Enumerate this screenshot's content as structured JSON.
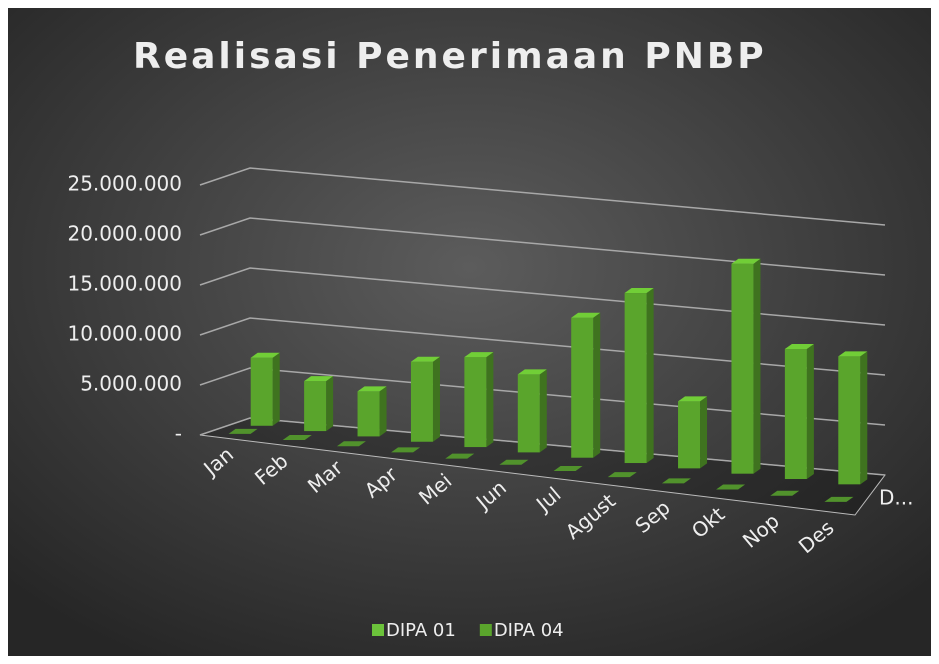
{
  "chart_data": {
    "type": "bar3d",
    "title": "Realisasi Penerimaan PNBP",
    "categories": [
      "Jan",
      "Feb",
      "Mar",
      "Apr",
      "Mei",
      "Jun",
      "Jul",
      "Agust",
      "Sep",
      "Okt",
      "Nop",
      "Des"
    ],
    "series": [
      {
        "name": "DIPA 01",
        "color": "#6cc33b",
        "values": [
          0,
          0,
          0,
          0,
          0,
          0,
          0,
          0,
          0,
          0,
          0,
          0
        ]
      },
      {
        "name": "DIPA 04",
        "color": "#5aa52c",
        "values": [
          6800000,
          5000000,
          4500000,
          8000000,
          9000000,
          7800000,
          14000000,
          17000000,
          6700000,
          21000000,
          13000000,
          12800000
        ]
      }
    ],
    "depth_label": "D...",
    "ylim": [
      0,
      25000000
    ],
    "yticks": [
      {
        "value": 0,
        "label": "-"
      },
      {
        "value": 5000000,
        "label": "5.000.000"
      },
      {
        "value": 10000000,
        "label": "10.000.000"
      },
      {
        "value": 15000000,
        "label": "15.000.000"
      },
      {
        "value": 20000000,
        "label": "20.000.000"
      },
      {
        "value": 25000000,
        "label": "25.000.000"
      }
    ],
    "grid": true,
    "legend": "bottom"
  }
}
